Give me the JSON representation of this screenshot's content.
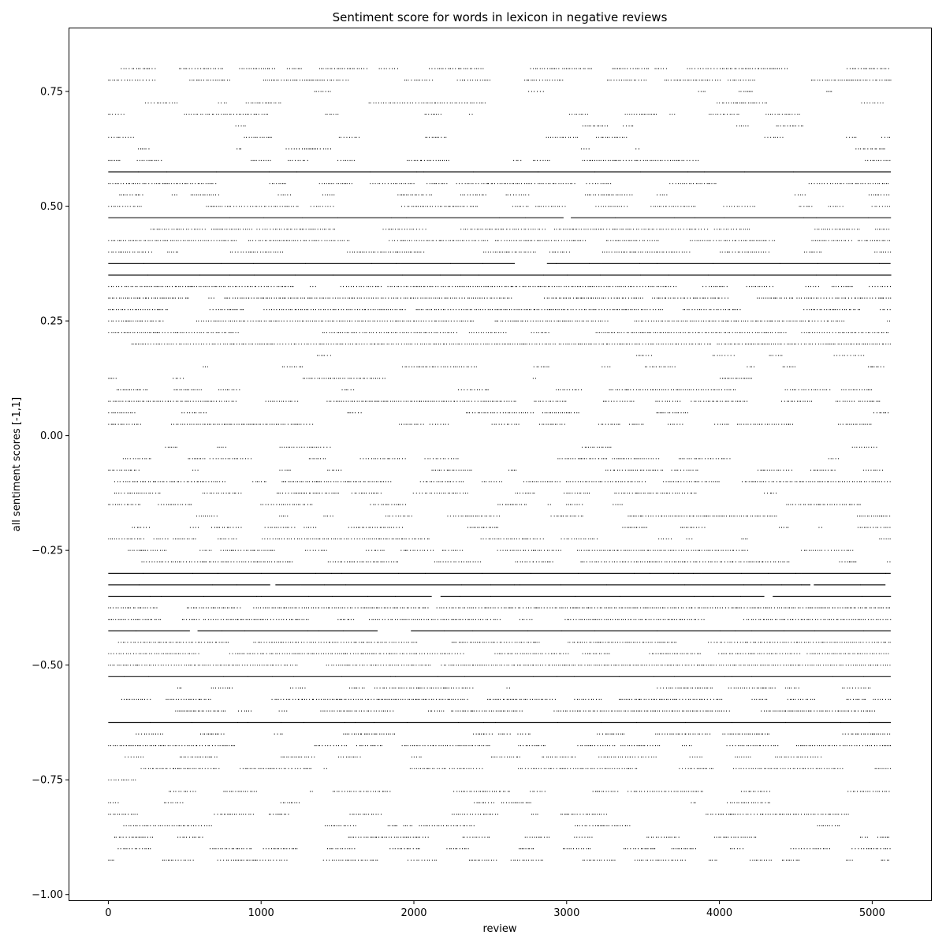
{
  "chart_data": {
    "type": "scatter",
    "title": "Sentiment score for words in lexicon in negative reviews",
    "xlabel": "review",
    "ylabel": "all sentiment scores [-1,1]",
    "xlim": [
      -255,
      5385
    ],
    "ylim": [
      -1.0125,
      0.8875
    ],
    "x_ticks": [
      0,
      1000,
      2000,
      3000,
      4000,
      5000
    ],
    "x_tick_labels": [
      "0",
      "1000",
      "2000",
      "3000",
      "4000",
      "5000"
    ],
    "y_ticks": [
      -1.0,
      -0.75,
      -0.5,
      -0.25,
      0.0,
      0.25,
      0.5,
      0.75
    ],
    "y_tick_labels": [
      "−1.00",
      "−0.75",
      "−0.50",
      "−0.25",
      "0.00",
      "0.25",
      "0.50",
      "0.75"
    ],
    "grid": false,
    "point_color": "#000000",
    "series": [
      {
        "x_range": [
          0,
          5120
        ],
        "score_levels": [
          {
            "y": 0.8,
            "density": 0.55
          },
          {
            "y": 0.775,
            "density": 0.6
          },
          {
            "y": 0.75,
            "density": 0.15
          },
          {
            "y": 0.725,
            "density": 0.3
          },
          {
            "y": 0.7,
            "density": 0.35
          },
          {
            "y": 0.675,
            "density": 0.2
          },
          {
            "y": 0.65,
            "density": 0.35
          },
          {
            "y": 0.625,
            "density": 0.15
          },
          {
            "y": 0.6,
            "density": 0.35
          },
          {
            "y": 0.575,
            "density": 0.95
          },
          {
            "y": 0.55,
            "density": 0.6
          },
          {
            "y": 0.525,
            "density": 0.3
          },
          {
            "y": 0.5,
            "density": 0.5
          },
          {
            "y": 0.475,
            "density": 0.95
          },
          {
            "y": 0.45,
            "density": 0.7
          },
          {
            "y": 0.425,
            "density": 0.75
          },
          {
            "y": 0.4,
            "density": 0.45
          },
          {
            "y": 0.375,
            "density": 0.95
          },
          {
            "y": 0.35,
            "density": 1.0
          },
          {
            "y": 0.325,
            "density": 0.85
          },
          {
            "y": 0.3,
            "density": 0.85
          },
          {
            "y": 0.275,
            "density": 0.8
          },
          {
            "y": 0.25,
            "density": 0.85
          },
          {
            "y": 0.225,
            "density": 0.8
          },
          {
            "y": 0.2,
            "density": 0.9
          },
          {
            "y": 0.175,
            "density": 0.1
          },
          {
            "y": 0.15,
            "density": 0.3
          },
          {
            "y": 0.125,
            "density": 0.15
          },
          {
            "y": 0.1,
            "density": 0.35
          },
          {
            "y": 0.075,
            "density": 0.65
          },
          {
            "y": 0.05,
            "density": 0.3
          },
          {
            "y": 0.025,
            "density": 0.6
          },
          {
            "y": -0.025,
            "density": 0.15
          },
          {
            "y": -0.05,
            "density": 0.35
          },
          {
            "y": -0.075,
            "density": 0.3
          },
          {
            "y": -0.1,
            "density": 0.75
          },
          {
            "y": -0.125,
            "density": 0.4
          },
          {
            "y": -0.15,
            "density": 0.3
          },
          {
            "y": -0.175,
            "density": 0.45
          },
          {
            "y": -0.2,
            "density": 0.25
          },
          {
            "y": -0.225,
            "density": 0.35
          },
          {
            "y": -0.25,
            "density": 0.6
          },
          {
            "y": -0.275,
            "density": 0.7
          },
          {
            "y": -0.3,
            "density": 1.0
          },
          {
            "y": -0.325,
            "density": 0.95
          },
          {
            "y": -0.35,
            "density": 0.95
          },
          {
            "y": -0.375,
            "density": 0.85
          },
          {
            "y": -0.4,
            "density": 0.8
          },
          {
            "y": -0.425,
            "density": 0.95
          },
          {
            "y": -0.45,
            "density": 0.85
          },
          {
            "y": -0.475,
            "density": 0.8
          },
          {
            "y": -0.5,
            "density": 0.85
          },
          {
            "y": -0.525,
            "density": 1.0
          },
          {
            "y": -0.55,
            "density": 0.45
          },
          {
            "y": -0.575,
            "density": 0.75
          },
          {
            "y": -0.6,
            "density": 0.55
          },
          {
            "y": -0.625,
            "density": 0.95
          },
          {
            "y": -0.65,
            "density": 0.45
          },
          {
            "y": -0.675,
            "density": 0.7
          },
          {
            "y": -0.7,
            "density": 0.45
          },
          {
            "y": -0.725,
            "density": 0.7
          },
          {
            "y": -0.75,
            "density": 0.1
          },
          {
            "y": -0.775,
            "density": 0.55
          },
          {
            "y": -0.8,
            "density": 0.3
          },
          {
            "y": -0.825,
            "density": 0.5
          },
          {
            "y": -0.85,
            "density": 0.35
          },
          {
            "y": -0.875,
            "density": 0.45
          },
          {
            "y": -0.9,
            "density": 0.35
          },
          {
            "y": -0.925,
            "density": 0.55
          }
        ]
      }
    ]
  }
}
